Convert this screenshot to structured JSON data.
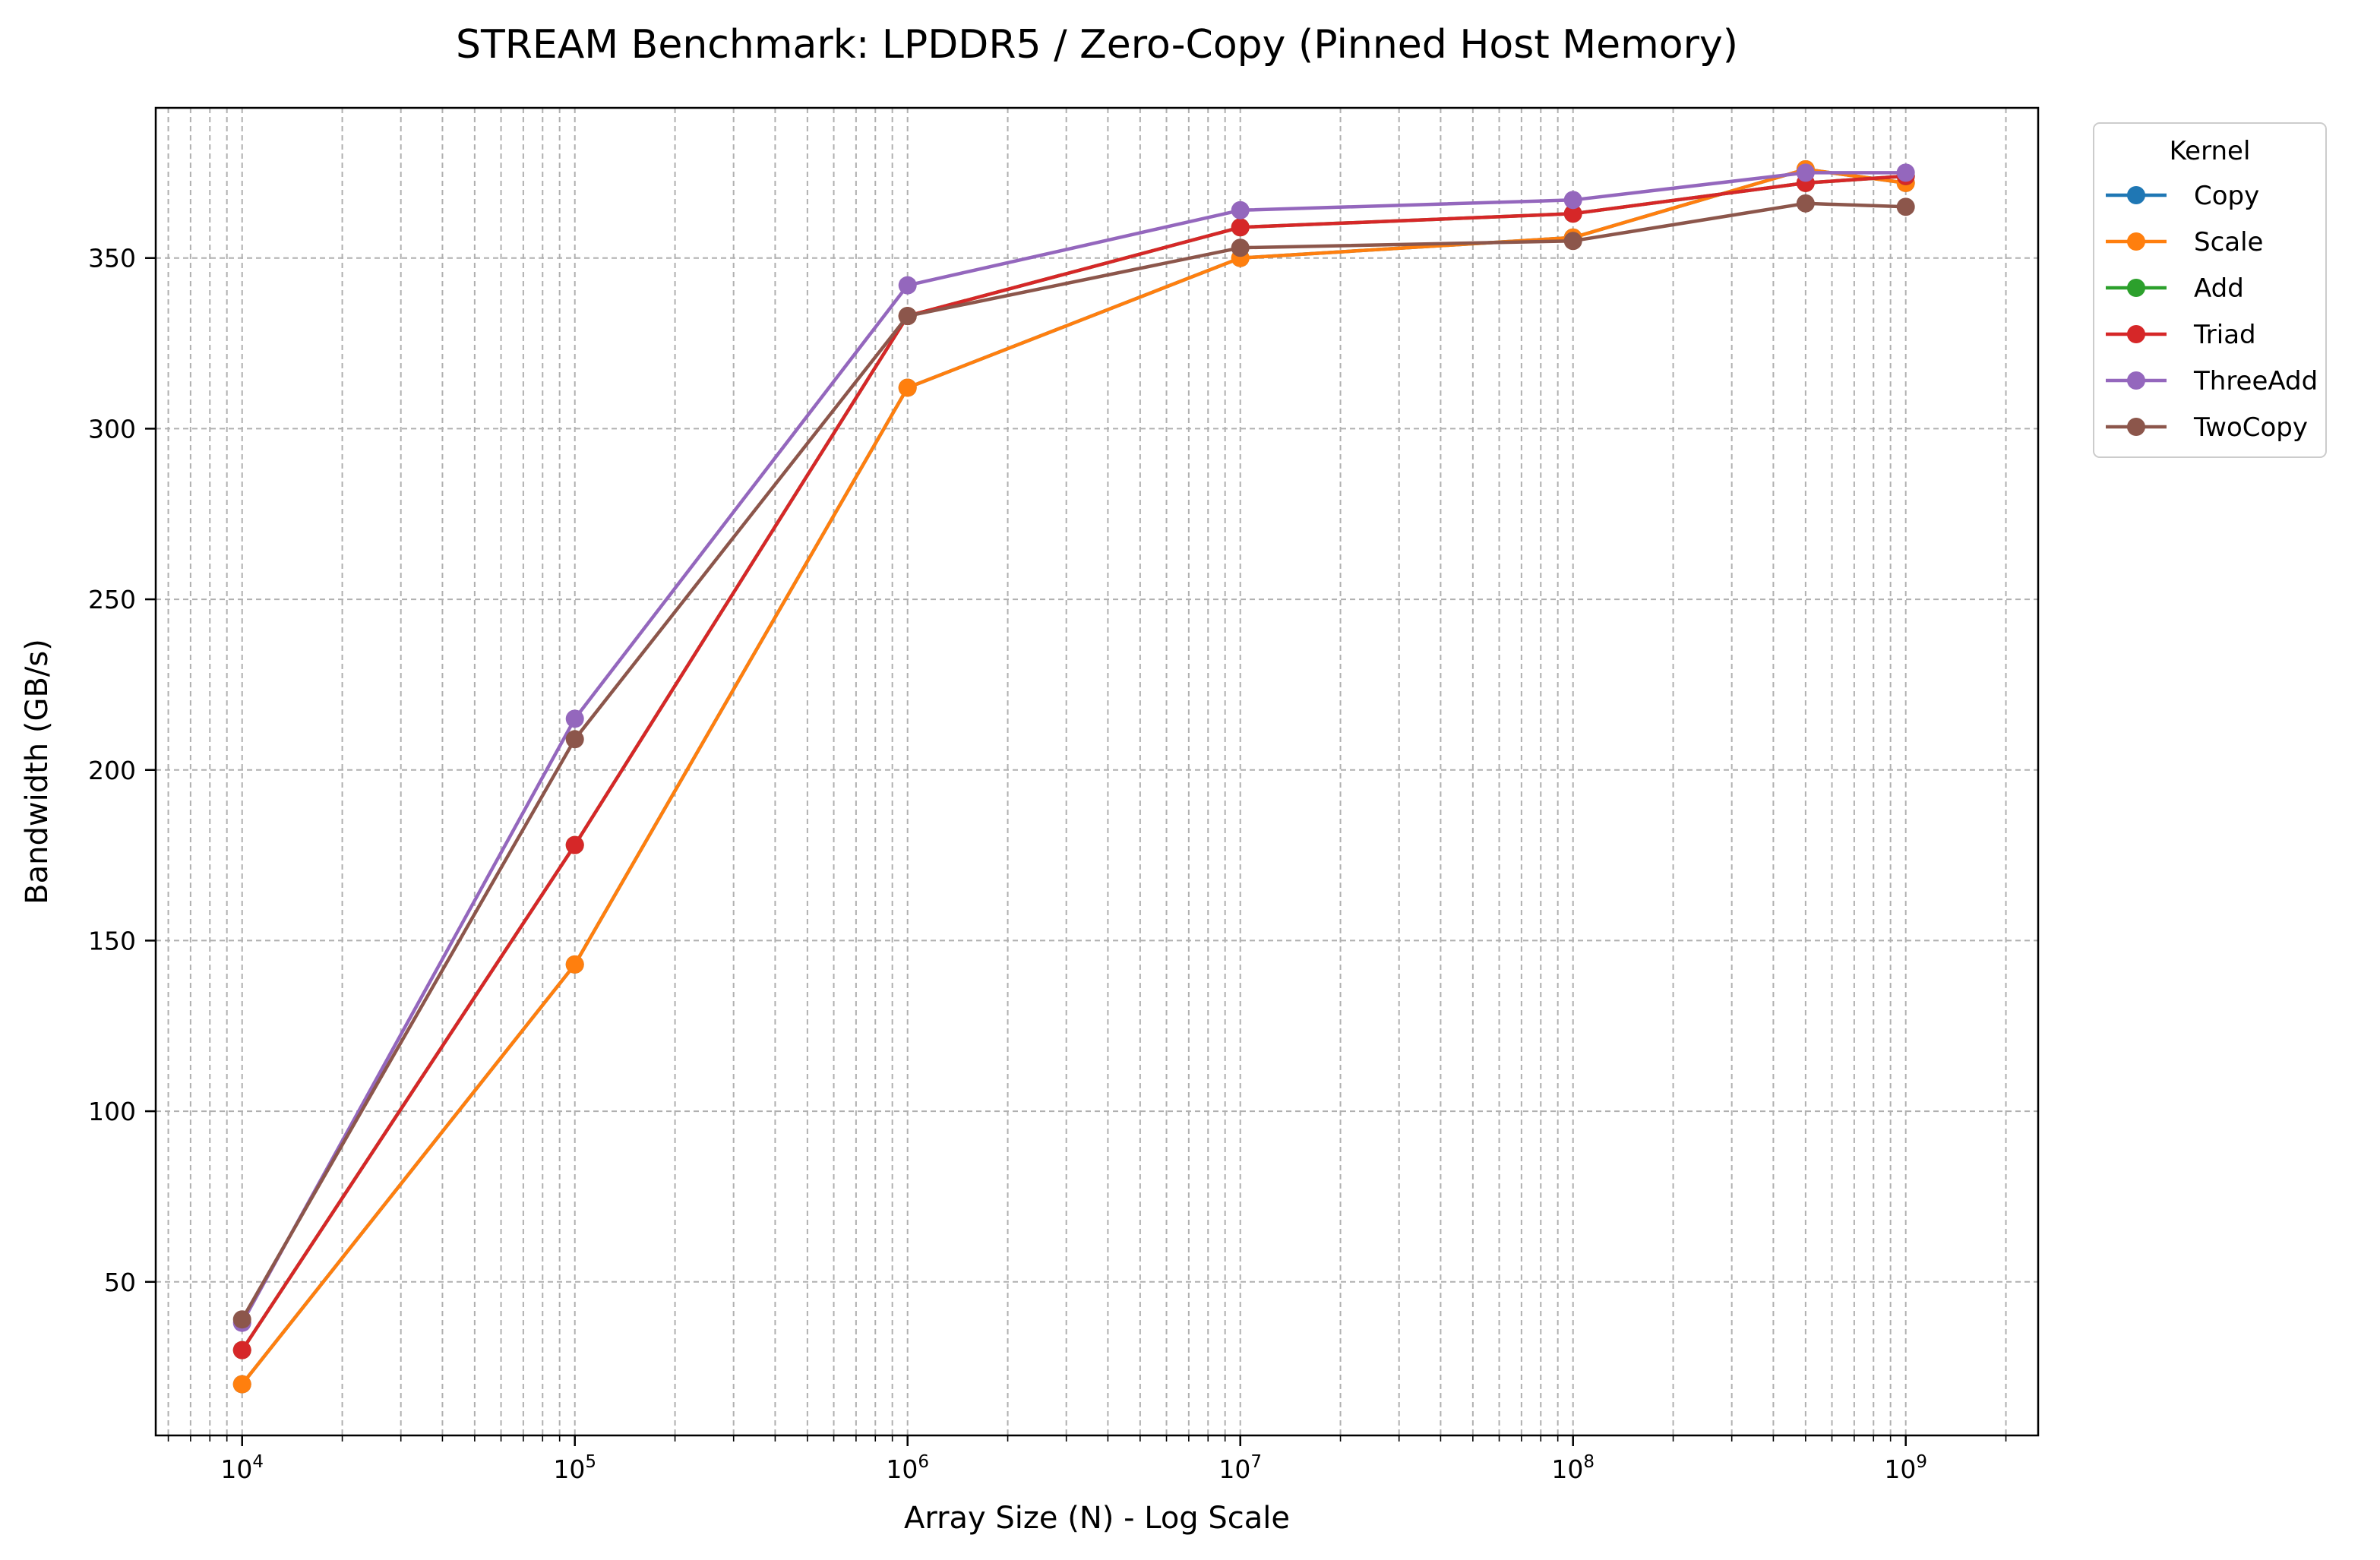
{
  "chart_data": {
    "type": "line",
    "title": "STREAM Benchmark: LPDDR5 / Zero-Copy (Pinned Host Memory)",
    "xlabel": "Array Size (N) - Log Scale",
    "ylabel": "Bandwidth (GB/s)",
    "xscale": "log",
    "xlim": [
      5500,
      2500000000
    ],
    "ylim": [
      5,
      394
    ],
    "grid": true,
    "legend": {
      "title": "Kernel",
      "placement": "outside-top-right"
    },
    "x_ticks": [
      {
        "value": 10000,
        "base": "10",
        "exp": "4"
      },
      {
        "value": 100000,
        "base": "10",
        "exp": "5"
      },
      {
        "value": 1000000,
        "base": "10",
        "exp": "6"
      },
      {
        "value": 10000000,
        "base": "10",
        "exp": "7"
      },
      {
        "value": 100000000,
        "base": "10",
        "exp": "8"
      },
      {
        "value": 1000000000,
        "base": "10",
        "exp": "9"
      }
    ],
    "y_ticks": [
      50,
      100,
      150,
      200,
      250,
      300,
      350
    ],
    "x": [
      10000,
      100000,
      1000000,
      10000000,
      100000000,
      500000000,
      1000000000
    ],
    "series": [
      {
        "name": "Copy",
        "color": "#1f77b4",
        "values": [
          20,
          143,
          312,
          350,
          356,
          376,
          372
        ]
      },
      {
        "name": "Scale",
        "color": "#ff7f0e",
        "values": [
          20,
          143,
          312,
          350,
          356,
          376,
          372
        ]
      },
      {
        "name": "Add",
        "color": "#2ca02c",
        "values": [
          30,
          178,
          333,
          359,
          363,
          372,
          374
        ]
      },
      {
        "name": "Triad",
        "color": "#d62728",
        "values": [
          30,
          178,
          333,
          359,
          363,
          372,
          374
        ]
      },
      {
        "name": "ThreeAdd",
        "color": "#9467bd",
        "values": [
          38,
          215,
          342,
          364,
          367,
          375,
          375
        ]
      },
      {
        "name": "TwoCopy",
        "color": "#8c564b",
        "values": [
          39,
          209,
          333,
          353,
          355,
          366,
          365
        ]
      }
    ]
  }
}
